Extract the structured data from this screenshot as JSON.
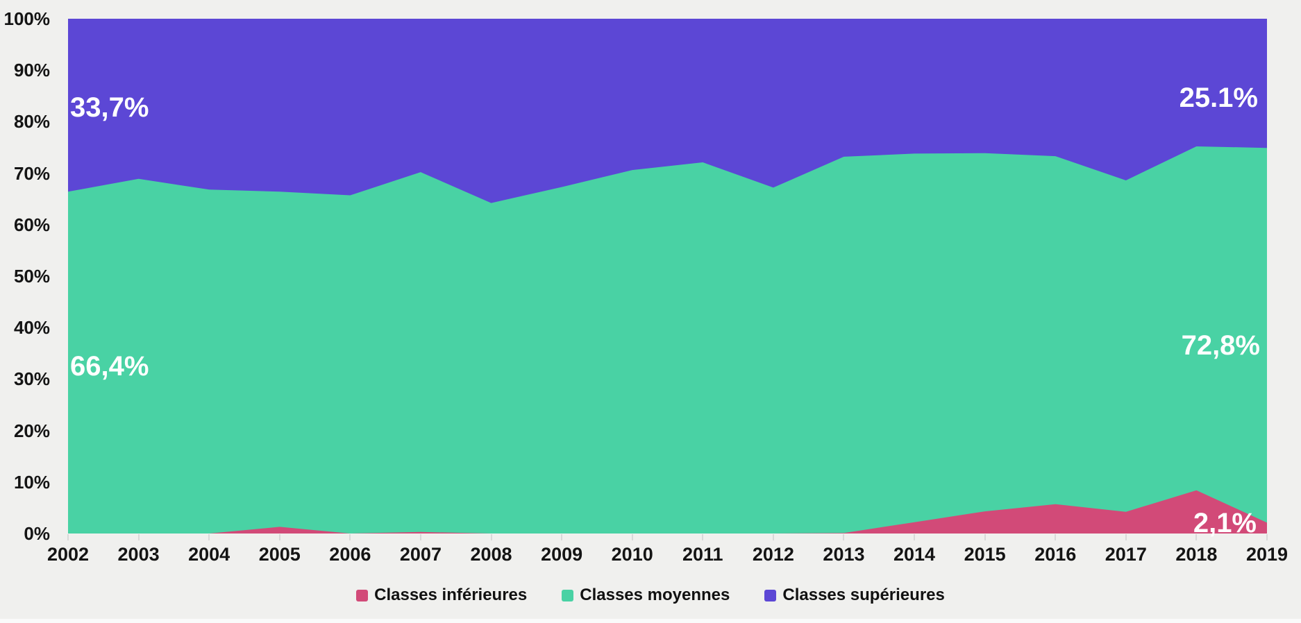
{
  "background_color": "#f0f0ee",
  "axis_text_color": "#141414",
  "tick_mark_color": "#d9d9d9",
  "chart_data": {
    "type": "area",
    "stacked": true,
    "percent_scale": true,
    "x": [
      2002,
      2003,
      2004,
      2005,
      2006,
      2007,
      2008,
      2009,
      2010,
      2011,
      2012,
      2013,
      2014,
      2015,
      2016,
      2017,
      2018,
      2019
    ],
    "series": [
      {
        "name": "Classes inférieures",
        "color": "#d24a78",
        "values": [
          0,
          0,
          0,
          1.3,
          0,
          0.3,
          0,
          0,
          0,
          0,
          0,
          0.1,
          2.2,
          4.3,
          5.7,
          4.2,
          8.4,
          2.1
        ]
      },
      {
        "name": "Classes moyennes",
        "color": "#49d2a4",
        "values": [
          66.4,
          68.9,
          66.8,
          65.1,
          65.7,
          69.9,
          64.2,
          67.3,
          70.6,
          72.1,
          67.2,
          73.1,
          71.6,
          69.6,
          67.6,
          64.4,
          66.8,
          72.8
        ]
      },
      {
        "name": "Classes supérieures",
        "color": "#5c47d5",
        "values": [
          33.7,
          31.1,
          33.2,
          33.6,
          34.3,
          29.8,
          35.8,
          32.7,
          29.4,
          27.9,
          32.8,
          26.8,
          26.2,
          26.1,
          26.7,
          31.4,
          24.8,
          25.1
        ]
      }
    ],
    "y_ticks": [
      "0%",
      "10%",
      "20%",
      "30%",
      "40%",
      "50%",
      "60%",
      "70%",
      "80%",
      "90%",
      "100%"
    ],
    "ylim": [
      0,
      100
    ],
    "grid": false,
    "legend_position": "bottom",
    "annotations": [
      {
        "id": "sup-left",
        "series": "Classes supérieures",
        "year": 2002,
        "text": "33,7%"
      },
      {
        "id": "sup-right",
        "series": "Classes supérieures",
        "year": 2019,
        "text": "25.1%"
      },
      {
        "id": "moy-left",
        "series": "Classes moyennes",
        "year": 2002,
        "text": "66,4%"
      },
      {
        "id": "moy-right",
        "series": "Classes moyennes",
        "year": 2019,
        "text": "72,8%"
      },
      {
        "id": "inf-right",
        "series": "Classes inférieures",
        "year": 2019,
        "text": "2,1%"
      }
    ]
  }
}
